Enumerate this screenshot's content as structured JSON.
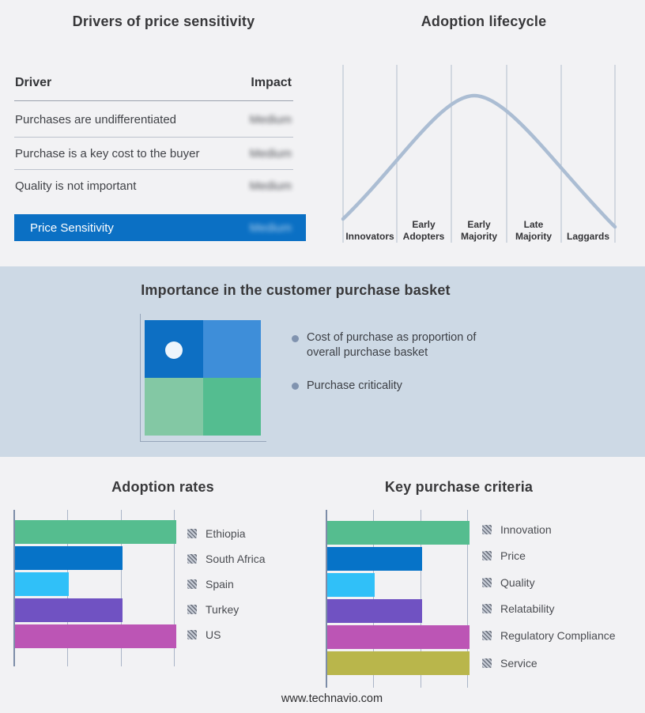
{
  "colors": {
    "page_bg": "#f2f2f4",
    "band_bg": "#cdd9e5",
    "accent_blue": "#0b70c4",
    "curve": "#abbdd3",
    "gridline": "#aab5c7",
    "bar_green": "#55bd8f",
    "bar_blue": "#0673c8",
    "bar_cyan": "#30c0f8",
    "bar_purple": "#7052c2",
    "bar_magenta": "#bc55b5",
    "bar_olive": "#b9b64b",
    "quad_top_left": "#0d6fc3",
    "quad_top_right": "#3e8ed9",
    "quad_bottom_left": "#83c8a4",
    "quad_bottom_right": "#54bd90"
  },
  "drivers_panel": {
    "title": "Drivers of price sensitivity"
  },
  "basket": {
    "title": "Importance in the customer purchase basket",
    "bullets": [
      "Cost of purchase as proportion of overall purchase basket",
      "Purchase criticality"
    ],
    "quadrant": {
      "cells": [
        [
          "blue-dark",
          "blue"
        ],
        [
          "green-light",
          "green"
        ]
      ],
      "marker": "white-dot-top-left-cell"
    }
  },
  "footer": {
    "url": "www.technavio.com"
  },
  "chart_data": [
    {
      "type": "table",
      "title": "Drivers of price sensitivity",
      "columns": [
        "Driver",
        "Impact"
      ],
      "rows": [
        [
          "Purchases are undifferentiated",
          "Medium"
        ],
        [
          "Purchase is a key cost to the buyer",
          "Medium"
        ],
        [
          "Quality is not important",
          "Medium"
        ]
      ],
      "highlight_row": [
        "Price Sensitivity",
        "Medium"
      ],
      "note": "Impact values are shown blurred (redacted) in the source image"
    },
    {
      "type": "line",
      "title": "Adoption lifecycle",
      "categories": [
        "Innovators",
        "Early Adopters",
        "Early Majority",
        "Late Majority",
        "Laggards"
      ],
      "shape": "bell curve rising from Innovators, peaking at Early Majority, falling to Laggards",
      "grid": "vertical stage dividers, no numeric axes",
      "legend_position": "none"
    },
    {
      "type": "bar",
      "title": "Adoption rates",
      "orientation": "horizontal",
      "categories": [
        "Ethiopia",
        "South Africa",
        "Spain",
        "Turkey",
        "US"
      ],
      "values": [
        3,
        2,
        1,
        2,
        3
      ],
      "xlim": [
        0,
        3
      ],
      "xlabel": "",
      "ylabel": "",
      "grid": "vertical gridlines at 1, 2, 3 (unlabeled units)",
      "legend_position": "right"
    },
    {
      "type": "bar",
      "title": "Key purchase criteria",
      "orientation": "horizontal",
      "categories": [
        "Innovation",
        "Price",
        "Quality",
        "Relatability",
        "Regulatory Compliance",
        "Service"
      ],
      "values": [
        3,
        2,
        1,
        2,
        3,
        3
      ],
      "xlim": [
        0,
        3
      ],
      "xlabel": "",
      "ylabel": "",
      "grid": "vertical gridlines at 1, 2, 3 (unlabeled units)",
      "legend_position": "right"
    }
  ]
}
